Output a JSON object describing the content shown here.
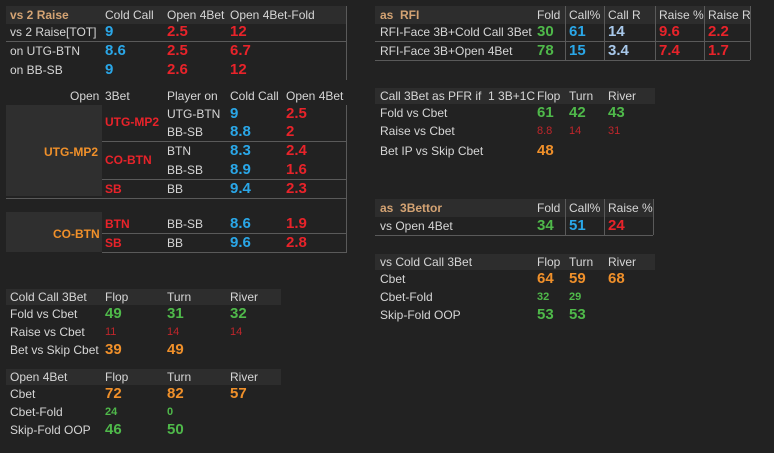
{
  "vs2raise": {
    "title": "vs 2 Raise",
    "headers": [
      "Cold Call",
      "Open 4Bet",
      "Open 4Bet-Fold"
    ],
    "rows": [
      {
        "label": "vs 2 Raise[TOT]",
        "cold_call": "9",
        "open4bet": "2.5",
        "open4bet_fold": "12"
      },
      {
        "label": "on UTG-BTN",
        "cold_call": "8.6",
        "open4bet": "2.5",
        "open4bet_fold": "6.7"
      },
      {
        "label": "on BB-SB",
        "cold_call": "9",
        "open4bet": "2.6",
        "open4bet_fold": "12"
      }
    ]
  },
  "open3bet": {
    "headers": [
      "Open",
      "3Bet",
      "Player on",
      "Cold Call",
      "Open 4Bet"
    ],
    "groups": [
      {
        "open": "UTG-MP2",
        "three_bet_labels": [
          "UTG-MP2",
          "CO-BTN",
          "SB"
        ]
      },
      {
        "open": "CO-BTN",
        "three_bet_labels": [
          "BTN",
          "SB"
        ]
      }
    ],
    "rows": [
      {
        "player_on": "UTG-BTN",
        "cold_call": "9",
        "open4bet": "2.5"
      },
      {
        "player_on": "BB-SB",
        "cold_call": "8.8",
        "open4bet": "2"
      },
      {
        "player_on": "BTN",
        "cold_call": "8.3",
        "open4bet": "2.4"
      },
      {
        "player_on": "BB-SB",
        "cold_call": "8.9",
        "open4bet": "1.6"
      },
      {
        "player_on": "BB",
        "cold_call": "9.4",
        "open4bet": "2.3"
      },
      {
        "player_on": "BB-SB",
        "cold_call": "8.6",
        "open4bet": "1.9"
      },
      {
        "player_on": "BB",
        "cold_call": "9.6",
        "open4bet": "2.8"
      }
    ]
  },
  "coldcall3bet": {
    "title": "Cold Call 3Bet",
    "headers": [
      "Flop",
      "Turn",
      "River"
    ],
    "rows": [
      {
        "label": "Fold vs Cbet",
        "flop": "49",
        "turn": "31",
        "river": "32"
      },
      {
        "label": "Raise vs Cbet",
        "flop": "11",
        "turn": "14",
        "river": "14"
      },
      {
        "label": "Bet vs Skip Cbet",
        "flop": "39",
        "turn": "49",
        "river": ""
      }
    ]
  },
  "open4bet": {
    "title": "Open 4Bet",
    "headers": [
      "Flop",
      "Turn",
      "River"
    ],
    "rows": [
      {
        "label": "Cbet",
        "flop": "72",
        "turn": "82",
        "river": "57"
      },
      {
        "label": "Cbet-Fold",
        "flop": "24",
        "turn": "0",
        "river": ""
      },
      {
        "label": "Skip-Fold OOP",
        "flop": "46",
        "turn": "50",
        "river": ""
      }
    ]
  },
  "rfi": {
    "title": "as  RFI",
    "headers": [
      "Fold",
      "Call%",
      "Call R",
      "Raise %",
      "Raise R"
    ],
    "rows": [
      {
        "label": "RFI-Face 3B+Cold Call 3Bet",
        "fold": "30",
        "call": "61",
        "call_r": "14",
        "raise": "9.6",
        "raise_r": "2.2"
      },
      {
        "label": "RFI-Face 3B+Open 4Bet",
        "fold": "78",
        "call": "15",
        "call_r": "3.4",
        "raise": "7.4",
        "raise_r": "1.7"
      }
    ]
  },
  "call3bet_pfr": {
    "title": "Call 3Bet as PFR if  1 3B+1C",
    "headers": [
      "Flop",
      "Turn",
      "River"
    ],
    "rows": [
      {
        "label": "Fold vs Cbet",
        "flop": "61",
        "turn": "42",
        "river": "43"
      },
      {
        "label": "Raise vs Cbet",
        "flop": "8.8",
        "turn": "14",
        "river": "31"
      },
      {
        "label": "Bet IP vs Skip Cbet",
        "flop": "48",
        "turn": "",
        "river": ""
      }
    ]
  },
  "as3bettor": {
    "title": "as  3Bettor",
    "headers": [
      "Fold",
      "Call%",
      "Raise %"
    ],
    "rows": [
      {
        "label": "vs Open 4Bet",
        "fold": "34",
        "call": "51",
        "raise": "24"
      }
    ]
  },
  "vscoldcall": {
    "title": "vs Cold Call 3Bet",
    "headers": [
      "Flop",
      "Turn",
      "River"
    ],
    "rows": [
      {
        "label": "Cbet",
        "flop": "64",
        "turn": "59",
        "river": "68"
      },
      {
        "label": "Cbet-Fold",
        "flop": "32",
        "turn": "29",
        "river": ""
      },
      {
        "label": "Skip-Fold OOP",
        "flop": "53",
        "turn": "53",
        "river": ""
      }
    ]
  }
}
